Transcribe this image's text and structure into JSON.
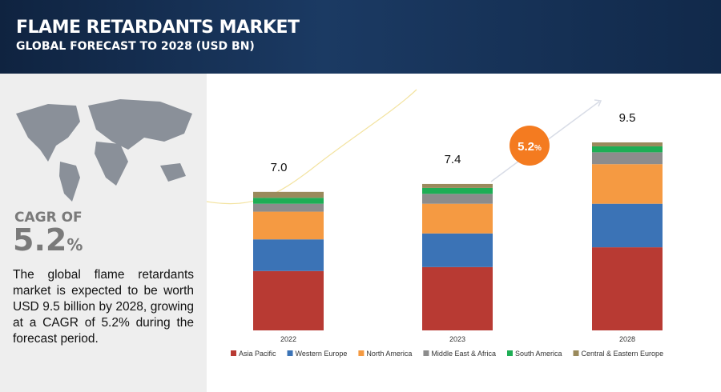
{
  "header": {
    "title": "FLAME RETARDANTS MARKET",
    "subtitle": "GLOBAL FORECAST TO 2028 (USD BN)"
  },
  "summary": {
    "cagr_label": "CAGR OF",
    "cagr_value": "5.2",
    "cagr_unit": "%",
    "text": "The global flame retardants market is expected to be worth USD 9.5 billion by 2028, growing at a CAGR of 5.2% during the forecast period."
  },
  "chart_data": {
    "type": "bar",
    "stacked": true,
    "categories": [
      "2022",
      "2023",
      "2028"
    ],
    "series": [
      {
        "name": "Asia Pacific",
        "color": "#b83a33",
        "values": [
          3.0,
          3.2,
          4.2
        ]
      },
      {
        "name": "Western Europe",
        "color": "#3b73b6",
        "values": [
          1.6,
          1.7,
          2.2
        ]
      },
      {
        "name": "North America",
        "color": "#f59a42",
        "values": [
          1.4,
          1.5,
          2.0
        ]
      },
      {
        "name": "Middle East & Africa",
        "color": "#8c8c8c",
        "values": [
          0.4,
          0.5,
          0.6
        ]
      },
      {
        "name": "South America",
        "color": "#1eae55",
        "values": [
          0.3,
          0.3,
          0.3
        ]
      },
      {
        "name": "Central & Eastern Europe",
        "color": "#9a8a5c",
        "values": [
          0.3,
          0.2,
          0.2
        ]
      }
    ],
    "totals": [
      7.0,
      7.4,
      9.5
    ],
    "value_labels": [
      "7.0",
      "7.4",
      "9.5"
    ],
    "annotation": {
      "value": "5.2",
      "unit": "%",
      "color": "#f47b20"
    },
    "legend": "bottom"
  }
}
